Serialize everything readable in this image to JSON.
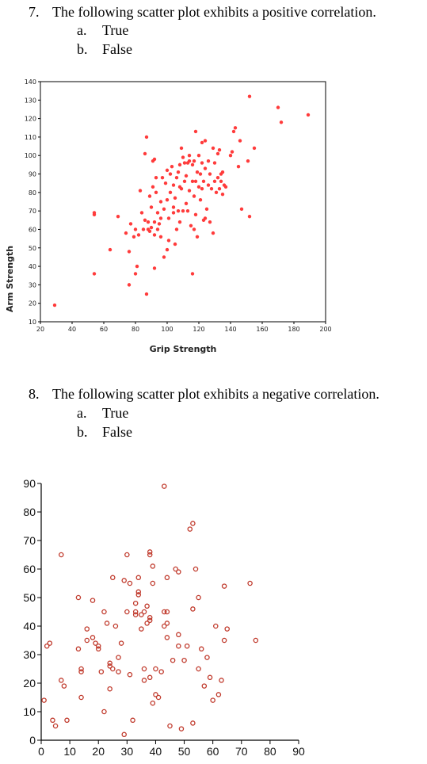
{
  "questions": [
    {
      "number": "7.",
      "text": "The following scatter plot exhibits a positive correlation.",
      "options": [
        {
          "letter": "a.",
          "text": "True"
        },
        {
          "letter": "b.",
          "text": "False"
        }
      ]
    },
    {
      "number": "8.",
      "text": "The following scatter plot exhibits a negative correlation.",
      "options": [
        {
          "letter": "a.",
          "text": "True"
        },
        {
          "letter": "b.",
          "text": "False"
        }
      ]
    }
  ],
  "chart_data": [
    {
      "type": "scatter",
      "title": "",
      "xlabel": "Grip Strength",
      "ylabel": "Arm Strength",
      "xlim": [
        20,
        200
      ],
      "ylim": [
        10,
        140
      ],
      "xticks": [
        20,
        40,
        60,
        80,
        100,
        120,
        140,
        160,
        180,
        200
      ],
      "yticks": [
        10,
        20,
        30,
        40,
        50,
        60,
        70,
        80,
        90,
        100,
        110,
        120,
        130,
        140
      ],
      "grid": false,
      "marker_color": "#ff3b3b",
      "points": [
        [
          29,
          19
        ],
        [
          54,
          36
        ],
        [
          54,
          68
        ],
        [
          54,
          69
        ],
        [
          64,
          49
        ],
        [
          69,
          67
        ],
        [
          74,
          58
        ],
        [
          76,
          30
        ],
        [
          76,
          48
        ],
        [
          77,
          63
        ],
        [
          79,
          56
        ],
        [
          80,
          60
        ],
        [
          80,
          36
        ],
        [
          81,
          40
        ],
        [
          82,
          57
        ],
        [
          83,
          81
        ],
        [
          84,
          69
        ],
        [
          85,
          60
        ],
        [
          86,
          65
        ],
        [
          86,
          101
        ],
        [
          87,
          25
        ],
        [
          87,
          110
        ],
        [
          88,
          60
        ],
        [
          88,
          64
        ],
        [
          89,
          59
        ],
        [
          89,
          78
        ],
        [
          90,
          72
        ],
        [
          90,
          61
        ],
        [
          91,
          97
        ],
        [
          91,
          83
        ],
        [
          92,
          57
        ],
        [
          92,
          64
        ],
        [
          92,
          98
        ],
        [
          92,
          39
        ],
        [
          93,
          80
        ],
        [
          93,
          88
        ],
        [
          94,
          60
        ],
        [
          94,
          69
        ],
        [
          95,
          63
        ],
        [
          96,
          56
        ],
        [
          96,
          75
        ],
        [
          96,
          66
        ],
        [
          97,
          88
        ],
        [
          98,
          45
        ],
        [
          98,
          71
        ],
        [
          99,
          85
        ],
        [
          100,
          49
        ],
        [
          100,
          92
        ],
        [
          100,
          76
        ],
        [
          101,
          54
        ],
        [
          101,
          66
        ],
        [
          102,
          80
        ],
        [
          102,
          90
        ],
        [
          103,
          94
        ],
        [
          104,
          69
        ],
        [
          104,
          72
        ],
        [
          104,
          84
        ],
        [
          105,
          52
        ],
        [
          105,
          77
        ],
        [
          106,
          60
        ],
        [
          106,
          88
        ],
        [
          107,
          70
        ],
        [
          107,
          91
        ],
        [
          108,
          95
        ],
        [
          108,
          64
        ],
        [
          108,
          83
        ],
        [
          109,
          104
        ],
        [
          109,
          82
        ],
        [
          110,
          70
        ],
        [
          110,
          99
        ],
        [
          111,
          96
        ],
        [
          111,
          86
        ],
        [
          112,
          74
        ],
        [
          112,
          89
        ],
        [
          113,
          96
        ],
        [
          113,
          70
        ],
        [
          114,
          81
        ],
        [
          114,
          97
        ],
        [
          114,
          100
        ],
        [
          115,
          62
        ],
        [
          116,
          36
        ],
        [
          116,
          86
        ],
        [
          116,
          95
        ],
        [
          117,
          60
        ],
        [
          117,
          78
        ],
        [
          117,
          97
        ],
        [
          118,
          113
        ],
        [
          118,
          68
        ],
        [
          118,
          86
        ],
        [
          119,
          56
        ],
        [
          119,
          91
        ],
        [
          120,
          83
        ],
        [
          120,
          100
        ],
        [
          121,
          76
        ],
        [
          121,
          90
        ],
        [
          122,
          96
        ],
        [
          122,
          107
        ],
        [
          122,
          82
        ],
        [
          123,
          65
        ],
        [
          123,
          86
        ],
        [
          124,
          108
        ],
        [
          124,
          93
        ],
        [
          124,
          66
        ],
        [
          125,
          71
        ],
        [
          126,
          84
        ],
        [
          126,
          97
        ],
        [
          127,
          64
        ],
        [
          127,
          90
        ],
        [
          128,
          82
        ],
        [
          129,
          58
        ],
        [
          129,
          104
        ],
        [
          130,
          86
        ],
        [
          130,
          96
        ],
        [
          131,
          80
        ],
        [
          132,
          88
        ],
        [
          132,
          101
        ],
        [
          133,
          103
        ],
        [
          133,
          82
        ],
        [
          134,
          90
        ],
        [
          134,
          86
        ],
        [
          135,
          91
        ],
        [
          135,
          79
        ],
        [
          136,
          84
        ],
        [
          137,
          83
        ],
        [
          140,
          100
        ],
        [
          141,
          102
        ],
        [
          142,
          113
        ],
        [
          143,
          115
        ],
        [
          145,
          94
        ],
        [
          146,
          108
        ],
        [
          147,
          71
        ],
        [
          151,
          97
        ],
        [
          152,
          67
        ],
        [
          152,
          132
        ],
        [
          155,
          104
        ],
        [
          170,
          126
        ],
        [
          172,
          118
        ],
        [
          189,
          122
        ]
      ]
    },
    {
      "type": "scatter",
      "title": "",
      "xlabel": "",
      "ylabel": "",
      "xlim": [
        0,
        90
      ],
      "ylim": [
        0,
        90
      ],
      "xticks": [
        0,
        10,
        20,
        30,
        40,
        50,
        60,
        70,
        80,
        90
      ],
      "yticks": [
        0,
        10,
        20,
        30,
        40,
        50,
        60,
        70,
        80,
        90
      ],
      "grid": false,
      "marker_color": "#c0392b",
      "points": [
        [
          1,
          14
        ],
        [
          2,
          33
        ],
        [
          3,
          34
        ],
        [
          4,
          7
        ],
        [
          5,
          5
        ],
        [
          7,
          65
        ],
        [
          7,
          21
        ],
        [
          8,
          19
        ],
        [
          9,
          7
        ],
        [
          13,
          32
        ],
        [
          13,
          50
        ],
        [
          14,
          25
        ],
        [
          14,
          24
        ],
        [
          14,
          15
        ],
        [
          16,
          35
        ],
        [
          16,
          39
        ],
        [
          18,
          36
        ],
        [
          18,
          49
        ],
        [
          19,
          34
        ],
        [
          20,
          32
        ],
        [
          20,
          33
        ],
        [
          21,
          24
        ],
        [
          22,
          10
        ],
        [
          22,
          45
        ],
        [
          23,
          41
        ],
        [
          24,
          26
        ],
        [
          24,
          27
        ],
        [
          24,
          18
        ],
        [
          25,
          57
        ],
        [
          25,
          25
        ],
        [
          26,
          40
        ],
        [
          27,
          24
        ],
        [
          27,
          29
        ],
        [
          28,
          34
        ],
        [
          29,
          2
        ],
        [
          29,
          56
        ],
        [
          30,
          45
        ],
        [
          30,
          65
        ],
        [
          31,
          55
        ],
        [
          31,
          23
        ],
        [
          32,
          7
        ],
        [
          33,
          45
        ],
        [
          33,
          48
        ],
        [
          33,
          44
        ],
        [
          34,
          57
        ],
        [
          34,
          52
        ],
        [
          34,
          51
        ],
        [
          35,
          39
        ],
        [
          35,
          44
        ],
        [
          36,
          45
        ],
        [
          36,
          25
        ],
        [
          36,
          21
        ],
        [
          37,
          41
        ],
        [
          37,
          47
        ],
        [
          38,
          42
        ],
        [
          38,
          43
        ],
        [
          38,
          65
        ],
        [
          38,
          66
        ],
        [
          38,
          22
        ],
        [
          39,
          13
        ],
        [
          39,
          55
        ],
        [
          39,
          61
        ],
        [
          40,
          16
        ],
        [
          40,
          25
        ],
        [
          41,
          15
        ],
        [
          42,
          24
        ],
        [
          43,
          89
        ],
        [
          43,
          45
        ],
        [
          43,
          40
        ],
        [
          44,
          57
        ],
        [
          44,
          41
        ],
        [
          44,
          36
        ],
        [
          44,
          45
        ],
        [
          45,
          5
        ],
        [
          46,
          28
        ],
        [
          47,
          60
        ],
        [
          48,
          33
        ],
        [
          48,
          37
        ],
        [
          48,
          59
        ],
        [
          49,
          4
        ],
        [
          50,
          28
        ],
        [
          51,
          33
        ],
        [
          52,
          74
        ],
        [
          53,
          46
        ],
        [
          53,
          76
        ],
        [
          53,
          6
        ],
        [
          54,
          60
        ],
        [
          55,
          50
        ],
        [
          55,
          25
        ],
        [
          56,
          32
        ],
        [
          57,
          19
        ],
        [
          58,
          29
        ],
        [
          59,
          22
        ],
        [
          60,
          14
        ],
        [
          61,
          40
        ],
        [
          62,
          16
        ],
        [
          63,
          21
        ],
        [
          64,
          35
        ],
        [
          64,
          54
        ],
        [
          65,
          39
        ],
        [
          73,
          55
        ],
        [
          75,
          35
        ]
      ]
    }
  ]
}
